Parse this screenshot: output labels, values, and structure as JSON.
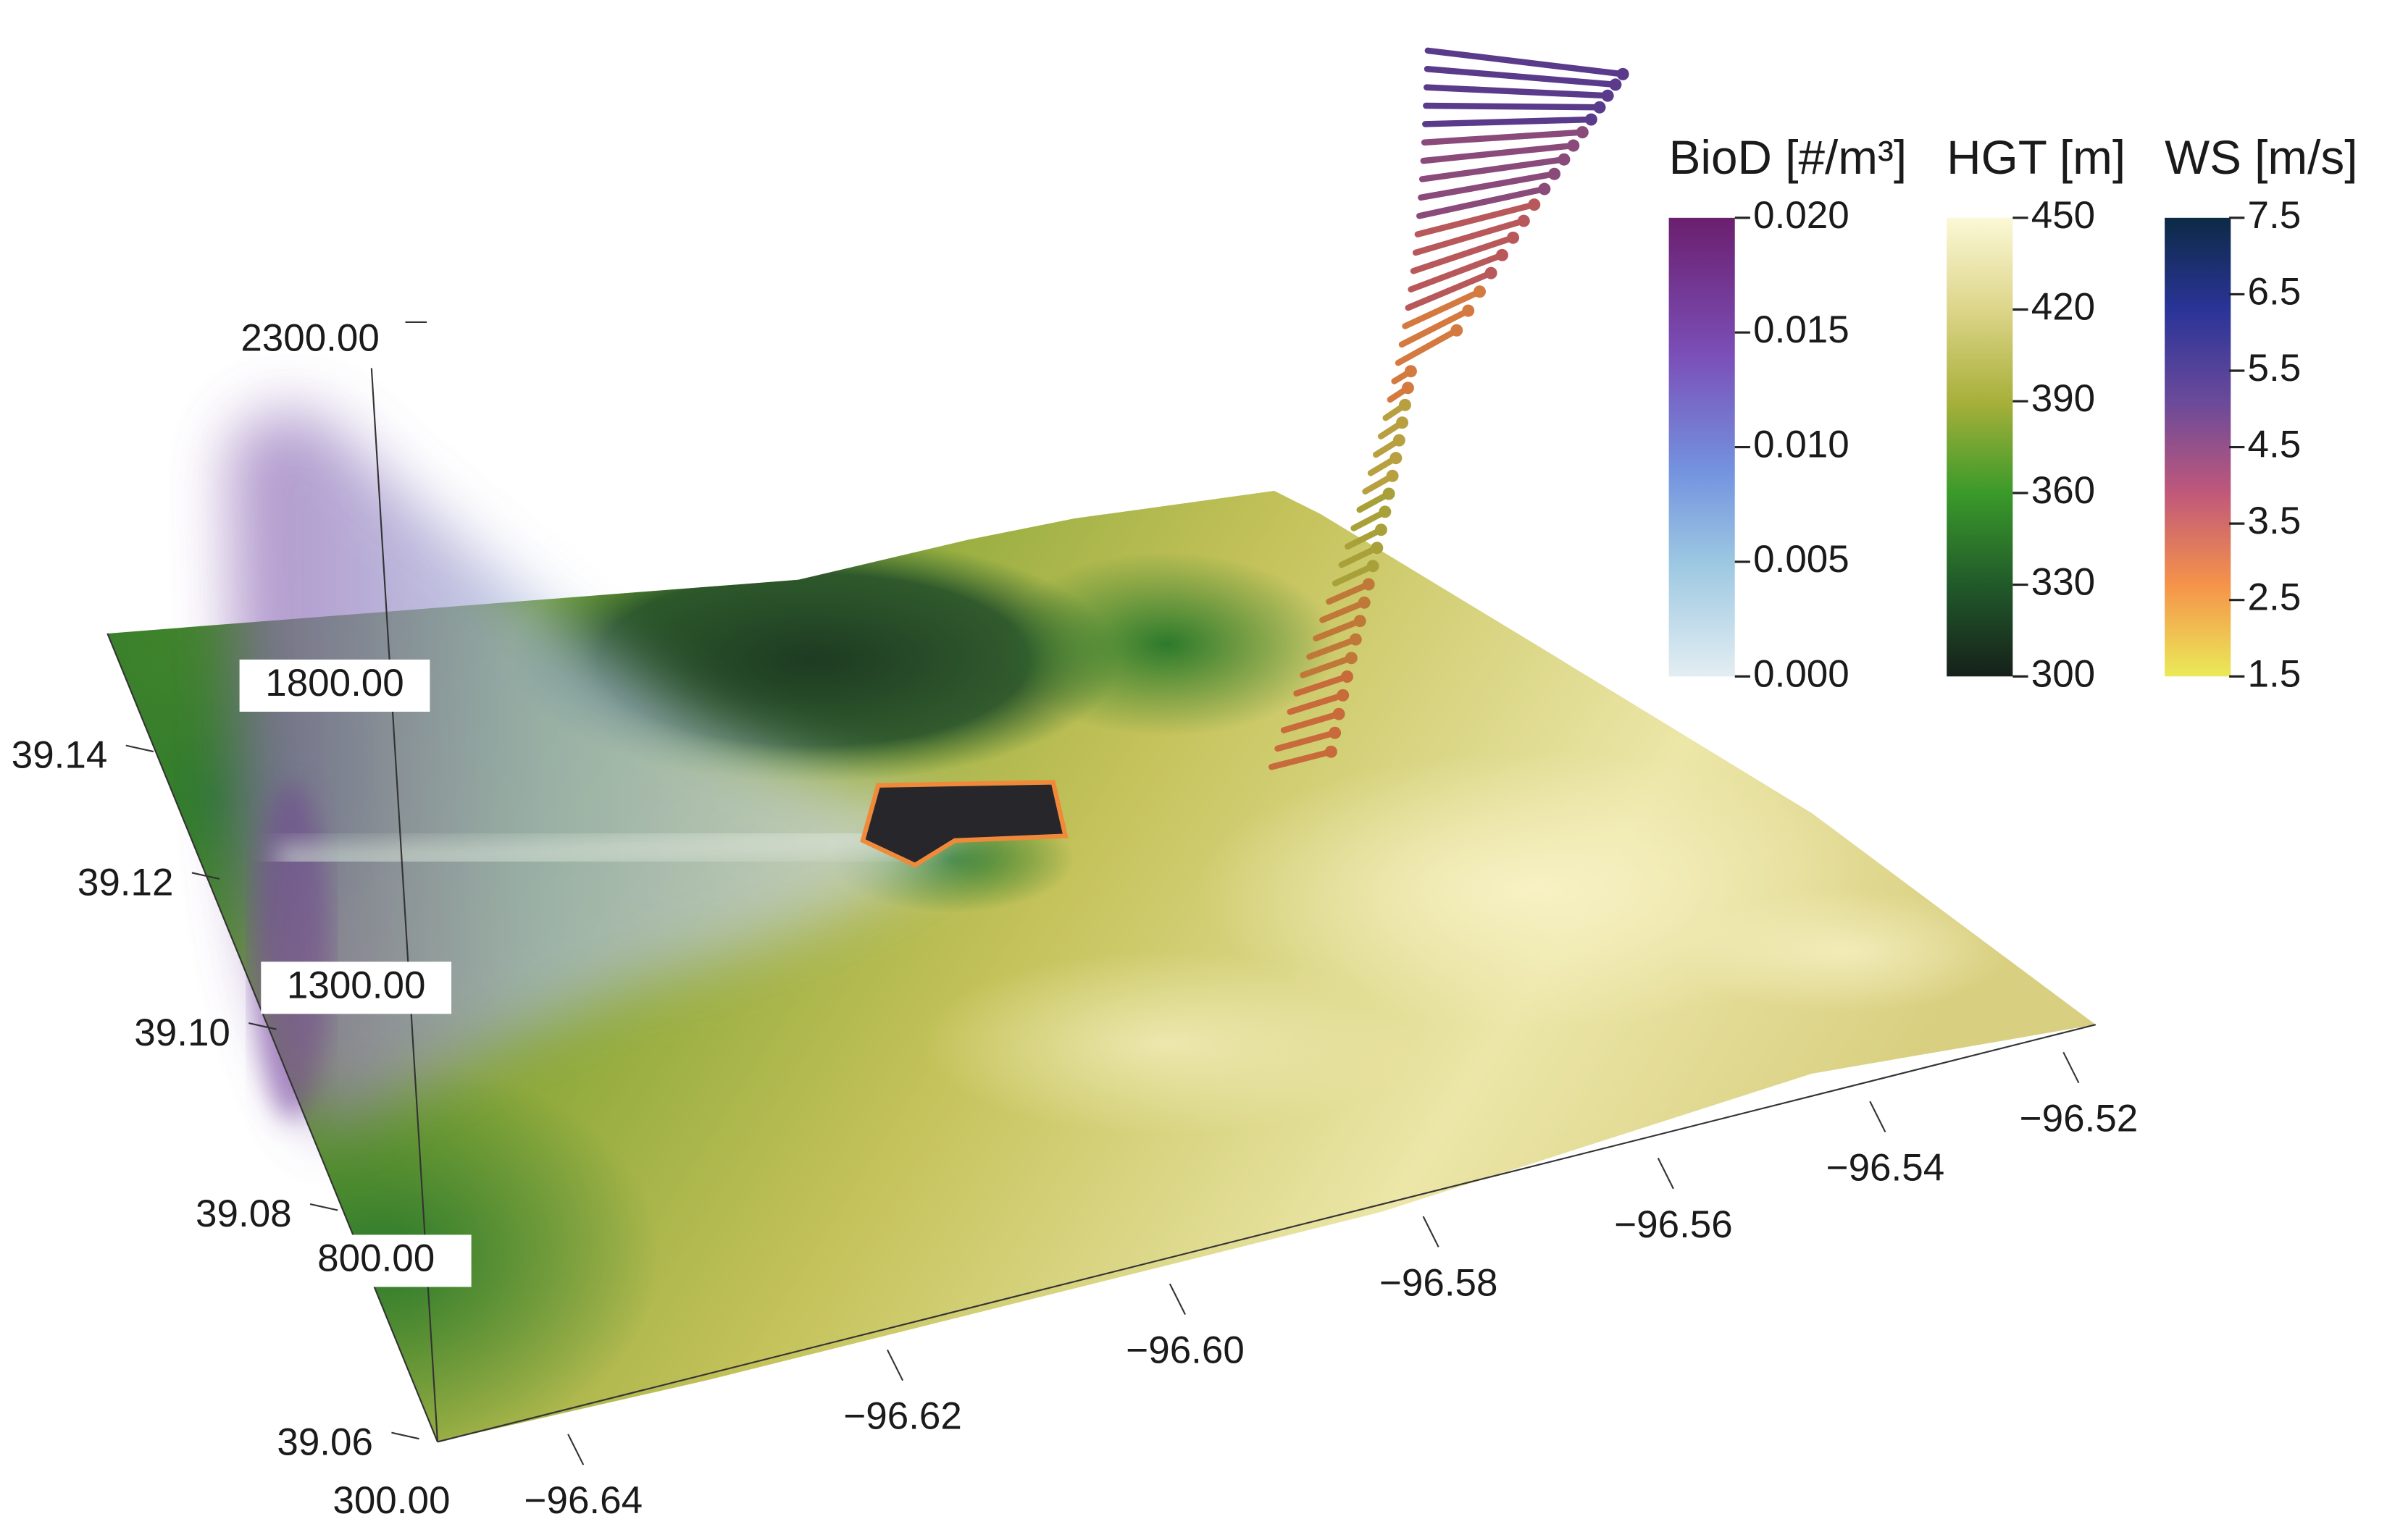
{
  "colorbars": [
    {
      "title": "BioD [#/m³]",
      "ticks": [
        "0.020",
        "0.015",
        "0.010",
        "0.005",
        "0.000"
      ]
    },
    {
      "title": "HGT [m]",
      "ticks": [
        "450",
        "420",
        "390",
        "360",
        "330",
        "300"
      ]
    },
    {
      "title": "WS [m/s]",
      "ticks": [
        "7.5",
        "6.5",
        "5.5",
        "4.5",
        "3.5",
        "2.5",
        "1.5"
      ]
    }
  ],
  "x_axis": {
    "ticks": [
      "−96.64",
      "−96.62",
      "−96.60",
      "−96.58",
      "−96.56",
      "−96.54",
      "−96.52"
    ]
  },
  "y_axis": {
    "ticks": [
      "39.14",
      "39.12",
      "39.10",
      "39.08",
      "39.06"
    ]
  },
  "z_axis": {
    "ticks": [
      "2300.00",
      "1800.00",
      "1300.00",
      "800.00",
      "300.00"
    ]
  }
}
